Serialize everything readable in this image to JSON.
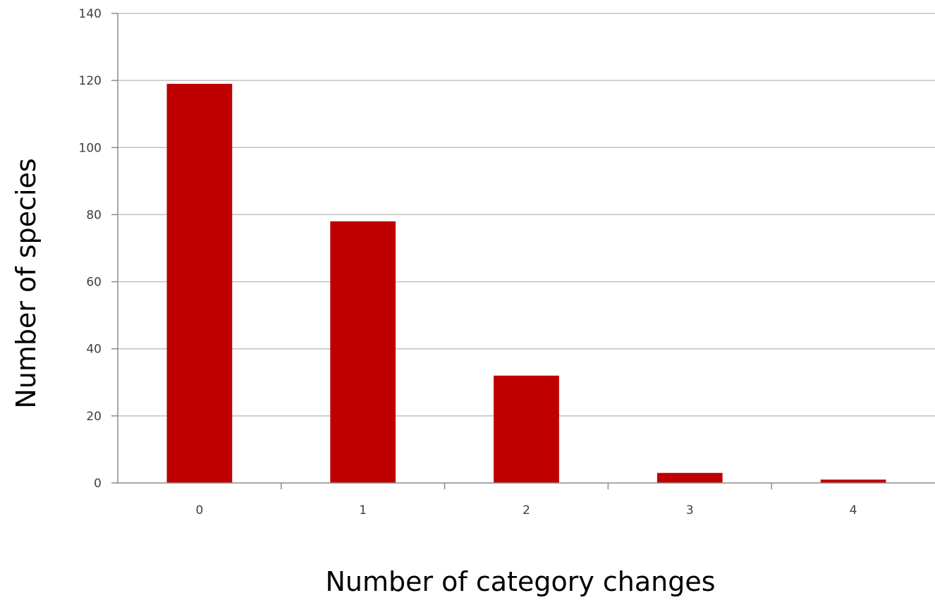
{
  "chart_data": {
    "type": "bar",
    "title": "",
    "xlabel": "Number of category changes",
    "ylabel": "Number of species",
    "categories": [
      "0",
      "1",
      "2",
      "3",
      "4"
    ],
    "values": [
      119,
      78,
      32,
      3,
      1
    ],
    "ylim": [
      0,
      140
    ],
    "yticks": [
      0,
      20,
      40,
      60,
      80,
      100,
      120,
      140
    ],
    "grid": true,
    "legend": "none",
    "bar_color": "#c00000"
  }
}
